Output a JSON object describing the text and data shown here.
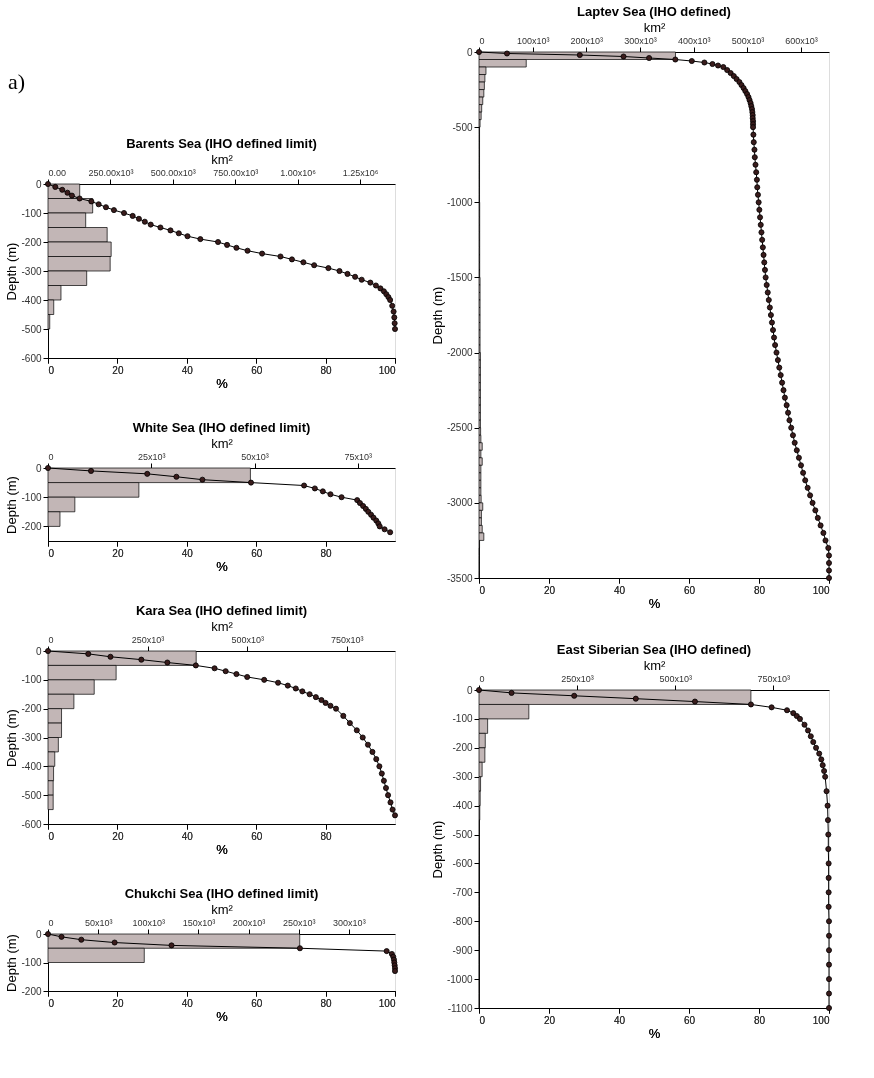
{
  "chart_data": [
    {
      "type": "histogram",
      "orientation": "horizontal",
      "title": "Barents Sea (IHO defined limit)",
      "annotations": [
        "a)"
      ],
      "x2label": "km²",
      "xlabel": "%",
      "ylabel": "Depth (m)",
      "grid": false,
      "ylim": [
        -600,
        0
      ],
      "yticks": [
        0,
        -100,
        -200,
        -300,
        -400,
        -500,
        -600
      ],
      "xlim": [
        0,
        100
      ],
      "xticks": [
        0,
        20,
        40,
        60,
        80,
        100
      ],
      "x2lim": [
        0,
        1390000
      ],
      "x2ticks": [
        {
          "value": 0,
          "label": "0.00"
        },
        {
          "value": 250000,
          "label": "250.00x10³"
        },
        {
          "value": 500000,
          "label": "500.00x10³"
        },
        {
          "value": 750000,
          "label": "750.00x10³"
        },
        {
          "value": 1000000,
          "label": "1.00x10⁶"
        },
        {
          "value": 1250000,
          "label": "1.25x10⁶"
        }
      ],
      "series": [
        {
          "type": "histogram",
          "axis": "x2",
          "color": "#c2b6b6",
          "bins": [
            0,
            -50,
            -100,
            -150,
            -200,
            -250,
            -300,
            -350,
            -400,
            -450,
            -500
          ],
          "values": [
            127000,
            179000,
            151000,
            237000,
            253000,
            249000,
            155000,
            52000,
            23000,
            7000
          ]
        },
        {
          "type": "line",
          "color": "#000000",
          "marker": "circle",
          "line_style": "solid",
          "x": [
            0,
            -10,
            -20,
            -30,
            -40,
            -50,
            -60,
            -70,
            -80,
            -90,
            -100,
            -110,
            -120,
            -130,
            -140,
            -150,
            -160,
            -170,
            -180,
            -190,
            -200,
            -210,
            -220,
            -230,
            -240,
            -250,
            -260,
            -270,
            -280,
            -290,
            -300,
            -310,
            -320,
            -330,
            -340,
            -350,
            -360,
            -370,
            -380,
            -390,
            -400,
            -420,
            -440,
            -460,
            -480,
            -500
          ],
          "values": [
            0,
            2.1,
            4.1,
            5.6,
            6.9,
            9.1,
            12.5,
            14.6,
            16.7,
            19.0,
            21.9,
            24.4,
            26.2,
            27.9,
            29.6,
            32.4,
            35.3,
            37.7,
            40.2,
            43.9,
            49.0,
            51.6,
            54.3,
            57.5,
            61.7,
            67.0,
            70.3,
            73.6,
            76.7,
            80.8,
            84.0,
            86.3,
            88.5,
            90.4,
            92.9,
            94.5,
            95.8,
            96.8,
            97.5,
            98.1,
            98.6,
            99.2,
            99.6,
            99.8,
            99.9,
            100
          ]
        }
      ]
    },
    {
      "type": "histogram",
      "orientation": "horizontal",
      "title": "White Sea (IHO defined limit)",
      "x2label": "km²",
      "xlabel": "%",
      "ylabel": "Depth (m)",
      "grid": false,
      "ylim": [
        -250,
        0
      ],
      "yticks": [
        0,
        -100,
        -200
      ],
      "xlim": [
        0,
        100
      ],
      "xticks": [
        0,
        20,
        40,
        60,
        80
      ],
      "x2lim": [
        0,
        84000
      ],
      "x2ticks": [
        0,
        {
          "value": 25000,
          "label": "25x10³"
        },
        {
          "value": 50000,
          "label": "50x10³"
        },
        {
          "value": 75000,
          "label": "75x10³"
        }
      ],
      "series": [
        {
          "type": "histogram",
          "axis": "x2",
          "color": "#c2b6b6",
          "bins": [
            0,
            -50,
            -100,
            -150,
            -200
          ],
          "values": [
            49000,
            22000,
            6500,
            2900
          ]
        },
        {
          "type": "line",
          "color": "#000000",
          "marker": "circle",
          "line_style": "solid",
          "x": [
            0,
            -10,
            -20,
            -30,
            -40,
            -50,
            -60,
            -70,
            -80,
            -90,
            -100,
            -110,
            -120,
            -130,
            -140,
            -150,
            -160,
            -170,
            -180,
            -190,
            -200,
            -210,
            -220
          ],
          "values": [
            0,
            12.4,
            28.6,
            37.0,
            44.5,
            58.5,
            73.8,
            76.9,
            79.2,
            81.4,
            84.6,
            89.1,
            89.9,
            90.8,
            91.6,
            92.3,
            93.1,
            93.8,
            94.6,
            95.2,
            95.6,
            97.0,
            98.6
          ]
        }
      ]
    },
    {
      "type": "histogram",
      "orientation": "horizontal",
      "title": "Kara Sea (IHO defined limit)",
      "x2label": "km²",
      "xlabel": "%",
      "ylabel": "Depth (m)",
      "grid": false,
      "ylim": [
        -600,
        0
      ],
      "yticks": [
        0,
        -100,
        -200,
        -300,
        -400,
        -500,
        -600
      ],
      "xlim": [
        0,
        100
      ],
      "xticks": [
        0,
        20,
        40,
        60,
        80
      ],
      "x2lim": [
        0,
        871000
      ],
      "x2ticks": [
        0,
        {
          "value": 250000,
          "label": "250x10³"
        },
        {
          "value": 500000,
          "label": "500x10³"
        },
        {
          "value": 750000,
          "label": "750x10³"
        }
      ],
      "series": [
        {
          "type": "histogram",
          "axis": "x2",
          "color": "#c2b6b6",
          "bins": [
            0,
            -50,
            -100,
            -150,
            -200,
            -250,
            -300,
            -350,
            -400,
            -450,
            -500,
            -550
          ],
          "values": [
            372000,
            171000,
            116000,
            65000,
            34000,
            34000,
            26000,
            17000,
            14000,
            13000,
            13000
          ]
        },
        {
          "type": "line",
          "color": "#000000",
          "marker": "circle",
          "line_style": "solid",
          "x": [
            0,
            -10,
            -20,
            -30,
            -40,
            -50,
            -60,
            -70,
            -80,
            -90,
            -100,
            -110,
            -120,
            -130,
            -140,
            -150,
            -160,
            -170,
            -180,
            -190,
            -200,
            -225,
            -250,
            -275,
            -300,
            -325,
            -350,
            -375,
            -400,
            -425,
            -450,
            -475,
            -500,
            -525,
            -550,
            -570
          ],
          "values": [
            0,
            11.6,
            18.0,
            26.9,
            34.4,
            42.6,
            48.0,
            51.2,
            54.3,
            57.4,
            62.3,
            66.3,
            69.1,
            71.4,
            73.3,
            75.4,
            77.2,
            78.8,
            80.0,
            81.4,
            83.0,
            85.1,
            87.0,
            89.0,
            90.7,
            92.2,
            93.5,
            94.6,
            95.5,
            96.2,
            96.8,
            97.4,
            98.0,
            98.7,
            99.3,
            100
          ]
        }
      ]
    },
    {
      "type": "histogram",
      "orientation": "horizontal",
      "title": "Chukchi Sea (IHO defined limit)",
      "x2label": "km²",
      "xlabel": "%",
      "ylabel": "Depth (m)",
      "grid": false,
      "ylim": [
        -200,
        0
      ],
      "yticks": [
        0,
        -100,
        -200
      ],
      "xlim": [
        0,
        100
      ],
      "xticks": [
        0,
        20,
        40,
        60,
        80,
        100
      ],
      "x2lim": [
        0,
        346000
      ],
      "x2ticks": [
        0,
        {
          "value": 50000,
          "label": "50x10³"
        },
        {
          "value": 100000,
          "label": "100x10³"
        },
        {
          "value": 150000,
          "label": "150x10³"
        },
        {
          "value": 200000,
          "label": "200x10³"
        },
        {
          "value": 250000,
          "label": "250x10³"
        },
        {
          "value": 300000,
          "label": "300x10³"
        }
      ],
      "series": [
        {
          "type": "histogram",
          "axis": "x2",
          "color": "#c2b6b6",
          "bins": [
            0,
            -50,
            -100
          ],
          "values": [
            251000,
            96000
          ]
        },
        {
          "type": "line",
          "color": "#000000",
          "marker": "circle",
          "line_style": "solid",
          "x": [
            0,
            -10,
            -20,
            -30,
            -40,
            -50,
            -60,
            -70,
            -80,
            -90,
            -100,
            -110,
            -120,
            -130
          ],
          "values": [
            0,
            3.9,
            9.6,
            19.2,
            35.6,
            72.6,
            97.6,
            99.1,
            99.5,
            99.7,
            99.8,
            99.9,
            100,
            100
          ]
        }
      ]
    },
    {
      "type": "histogram",
      "orientation": "horizontal",
      "title": "Laptev Sea (IHO defined)",
      "x2label": "km²",
      "xlabel": "%",
      "ylabel": "Depth (m)",
      "grid": false,
      "ylim": [
        -3500,
        0
      ],
      "yticks": [
        0,
        -500,
        -1000,
        -1500,
        -2000,
        -2500,
        -3000,
        -3500
      ],
      "xlim": [
        0,
        100
      ],
      "xticks": [
        0,
        20,
        40,
        60,
        80,
        100
      ],
      "x2lim": [
        0,
        652000
      ],
      "x2ticks": [
        0,
        {
          "value": 100000,
          "label": "100x10³"
        },
        {
          "value": 200000,
          "label": "200x10³"
        },
        {
          "value": 300000,
          "label": "300x10³"
        },
        {
          "value": 400000,
          "label": "400x10³"
        },
        {
          "value": 500000,
          "label": "500x10³"
        },
        {
          "value": 600000,
          "label": "600x10³"
        }
      ],
      "series": [
        {
          "type": "histogram",
          "axis": "x2",
          "color": "#c2b6b6",
          "bins": [
            0,
            -50,
            -100,
            -150,
            -200,
            -250,
            -300,
            -350,
            -400,
            -450,
            -500,
            -550,
            -600,
            -650,
            -700,
            -750,
            -800,
            -850,
            -900,
            -950,
            -1000,
            -1050,
            -1100,
            -1150,
            -1200,
            -1250,
            -1300,
            -1350,
            -1400,
            -1450,
            -1500,
            -1550,
            -1600,
            -1650,
            -1700,
            -1750,
            -1800,
            -1850,
            -1900,
            -1950,
            -2000,
            -2050,
            -2100,
            -2150,
            -2200,
            -2250,
            -2300,
            -2350,
            -2400,
            -2450,
            -2500,
            -2550,
            -2600,
            -2650,
            -2700,
            -2750,
            -2800,
            -2850,
            -2900,
            -2950,
            -3000,
            -3050,
            -3100,
            -3150,
            -3200,
            -3250,
            -3300,
            -3350,
            -3400,
            -3450,
            -3500
          ],
          "values": [
            366000,
            88000,
            13000,
            11000,
            10000,
            9000,
            7000,
            5000,
            4000,
            2000,
            1000,
            1000,
            1000,
            1000,
            1000,
            1000,
            1000,
            1000,
            1000,
            1000,
            1300,
            1300,
            1300,
            1300,
            1300,
            1300,
            1300,
            1300,
            1300,
            1300,
            2000,
            2000,
            2000,
            2000,
            2000,
            2000,
            2000,
            2000,
            2000,
            2000,
            2700,
            2700,
            2700,
            2700,
            2700,
            2700,
            2700,
            2700,
            2700,
            2700,
            3000,
            3500,
            6000,
            3500,
            6000,
            3500,
            3500,
            3500,
            3500,
            4000,
            7000,
            4500,
            4500,
            6000,
            9000,
            1000,
            500,
            500,
            500,
            500
          ]
        },
        {
          "type": "line",
          "color": "#000000",
          "marker": "circle",
          "line_style": "solid",
          "x": [
            0,
            -10,
            -20,
            -30,
            -40,
            -50,
            -60,
            -70,
            -80,
            -90,
            -100,
            -120,
            -140,
            -160,
            -180,
            -200,
            -220,
            -240,
            -260,
            -280,
            -300,
            -320,
            -340,
            -360,
            -380,
            -400,
            -420,
            -440,
            -460,
            -480,
            -500,
            -550,
            -600,
            -650,
            -700,
            -750,
            -800,
            -850,
            -900,
            -950,
            -1000,
            -1050,
            -1100,
            -1150,
            -1200,
            -1250,
            -1300,
            -1350,
            -1400,
            -1450,
            -1500,
            -1550,
            -1600,
            -1650,
            -1700,
            -1750,
            -1800,
            -1850,
            -1900,
            -1950,
            -2000,
            -2050,
            -2100,
            -2150,
            -2200,
            -2250,
            -2300,
            -2350,
            -2400,
            -2450,
            -2500,
            -2550,
            -2600,
            -2650,
            -2700,
            -2750,
            -2800,
            -2850,
            -2900,
            -2950,
            -3000,
            -3050,
            -3100,
            -3150,
            -3200,
            -3250,
            -3300,
            -3350,
            -3400,
            -3450,
            -3500
          ],
          "values": [
            0,
            8.0,
            28.8,
            41.3,
            48.6,
            56.1,
            60.8,
            64.4,
            66.7,
            68.3,
            69.8,
            70.9,
            71.9,
            72.8,
            73.6,
            74.4,
            75.0,
            75.6,
            76.1,
            76.6,
            77.0,
            77.3,
            77.6,
            77.8,
            78.0,
            78.1,
            78.2,
            78.2,
            78.3,
            78.3,
            78.3,
            78.4,
            78.5,
            78.7,
            78.8,
            79.0,
            79.2,
            79.4,
            79.5,
            79.7,
            79.9,
            80.1,
            80.3,
            80.5,
            80.7,
            80.9,
            81.1,
            81.3,
            81.5,
            81.7,
            81.9,
            82.2,
            82.5,
            82.8,
            83.1,
            83.4,
            83.7,
            84.0,
            84.3,
            84.6,
            85.0,
            85.4,
            85.8,
            86.2,
            86.6,
            87.0,
            87.4,
            87.9,
            88.3,
            88.7,
            89.2,
            89.7,
            90.2,
            90.8,
            91.4,
            92.0,
            92.6,
            93.2,
            93.9,
            94.6,
            95.3,
            96.1,
            96.8,
            97.6,
            98.4,
            99.0,
            99.8,
            100,
            100,
            100,
            100
          ]
        }
      ]
    },
    {
      "type": "histogram",
      "orientation": "horizontal",
      "title": "East Siberian Sea (IHO defined)",
      "x2label": "km²",
      "xlabel": "%",
      "ylabel": "Depth (m)",
      "grid": false,
      "ylim": [
        -1100,
        0
      ],
      "yticks": [
        0,
        -100,
        -200,
        -300,
        -400,
        -500,
        -600,
        -700,
        -800,
        -900,
        -1000,
        -1100
      ],
      "xlim": [
        0,
        100
      ],
      "xticks": [
        0,
        20,
        40,
        60,
        80,
        100
      ],
      "x2lim": [
        0,
        892000
      ],
      "x2ticks": [
        0,
        {
          "value": 250000,
          "label": "250x10³"
        },
        {
          "value": 500000,
          "label": "500x10³"
        },
        {
          "value": 750000,
          "label": "750x10³"
        }
      ],
      "series": [
        {
          "type": "histogram",
          "axis": "x2",
          "color": "#c2b6b6",
          "bins": [
            0,
            -50,
            -100,
            -150,
            -200,
            -250,
            -300,
            -350,
            -400,
            -450,
            -500,
            -550,
            -600,
            -650,
            -700,
            -750,
            -800,
            -850,
            -900,
            -950,
            -1000,
            -1050,
            -1100
          ],
          "values": [
            693000,
            127000,
            22000,
            16000,
            15000,
            8000,
            4000,
            3000,
            2000,
            1000,
            1000,
            1000,
            500,
            500,
            500,
            500,
            500,
            500,
            500,
            500,
            500,
            500
          ]
        },
        {
          "type": "line",
          "color": "#000000",
          "marker": "circle",
          "line_style": "solid",
          "x": [
            0,
            -10,
            -20,
            -30,
            -40,
            -50,
            -60,
            -70,
            -80,
            -90,
            -100,
            -120,
            -140,
            -160,
            -180,
            -200,
            -220,
            -240,
            -260,
            -280,
            -300,
            -350,
            -400,
            -450,
            -500,
            -550,
            -600,
            -650,
            -700,
            -750,
            -800,
            -850,
            -900,
            -950,
            -1000,
            -1050,
            -1100
          ],
          "values": [
            0,
            9.3,
            27.2,
            44.8,
            61.7,
            77.7,
            83.6,
            88.0,
            89.8,
            90.8,
            91.7,
            93.0,
            94.0,
            94.8,
            95.5,
            96.3,
            97.2,
            97.8,
            98.2,
            98.6,
            98.9,
            99.3,
            99.6,
            99.7,
            99.8,
            99.8,
            99.9,
            99.9,
            99.9,
            99.9,
            100,
            100,
            100,
            100,
            100,
            100,
            100
          ]
        }
      ]
    }
  ]
}
